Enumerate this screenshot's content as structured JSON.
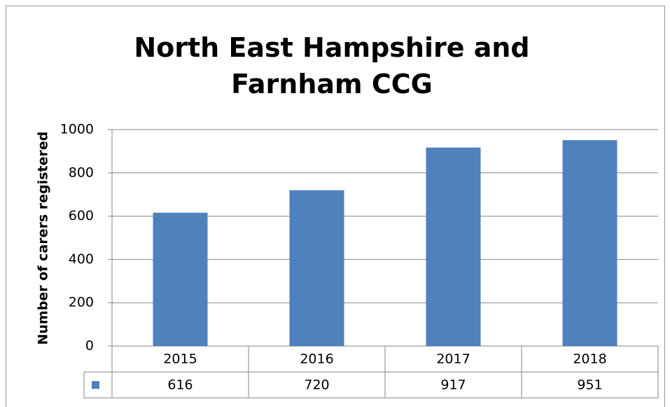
{
  "chart_data": {
    "type": "bar",
    "title": "North East Hampshire and Farnham CCG",
    "y_label": "Number of carers registered",
    "categories": [
      "2015",
      "2016",
      "2017",
      "2018"
    ],
    "values": [
      616,
      720,
      917,
      951
    ],
    "color": "#4f81bd",
    "ylim": [
      0,
      1000
    ],
    "yticks": [
      0,
      200,
      400,
      600,
      800,
      1000
    ],
    "grid": true,
    "data_table": true
  }
}
